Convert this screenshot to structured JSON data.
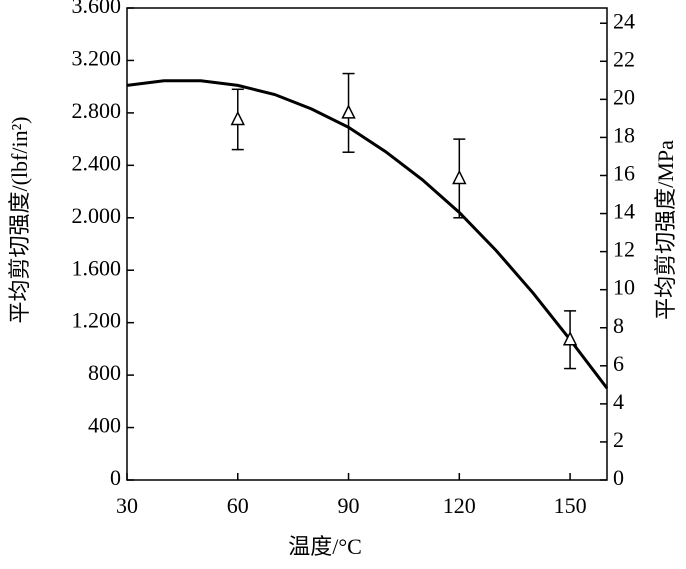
{
  "chart_data": {
    "type": "scatter",
    "xlabel": "温度/°C",
    "ylabel": "平均剪切强度/(lbf/in²)",
    "y2label": "平均剪切强度/MPa",
    "xlim": [
      30,
      160
    ],
    "xticks": [
      30,
      60,
      90,
      120,
      150
    ],
    "ylim": [
      0,
      3600
    ],
    "yticks": [
      0,
      400,
      800,
      {
        "value": 1200,
        "label": "1.200"
      },
      {
        "value": 1600,
        "label": "1.600"
      },
      {
        "value": 2000,
        "label": "2.000"
      },
      {
        "value": 2400,
        "label": "2.400"
      },
      {
        "value": 2800,
        "label": "2.800"
      },
      {
        "value": 3200,
        "label": "3.200"
      },
      {
        "value": 3600,
        "label": "3.600"
      }
    ],
    "y2lim": [
      0,
      24.8
    ],
    "y2ticks": [
      0,
      2,
      4,
      6,
      8,
      10,
      12,
      14,
      16,
      18,
      20,
      22,
      24
    ],
    "color": "#000000",
    "points": {
      "x": [
        60,
        90,
        120,
        150
      ],
      "values": [
        2750,
        2800,
        2300,
        1070
      ],
      "errors": [
        230,
        300,
        300,
        220
      ]
    },
    "curve": {
      "x": [
        30,
        40,
        50,
        60,
        70,
        80,
        90,
        100,
        110,
        120,
        130,
        140,
        150,
        160
      ],
      "values": [
        3010,
        3045,
        3045,
        3010,
        2940,
        2830,
        2690,
        2505,
        2290,
        2040,
        1750,
        1425,
        1070,
        700
      ]
    }
  }
}
